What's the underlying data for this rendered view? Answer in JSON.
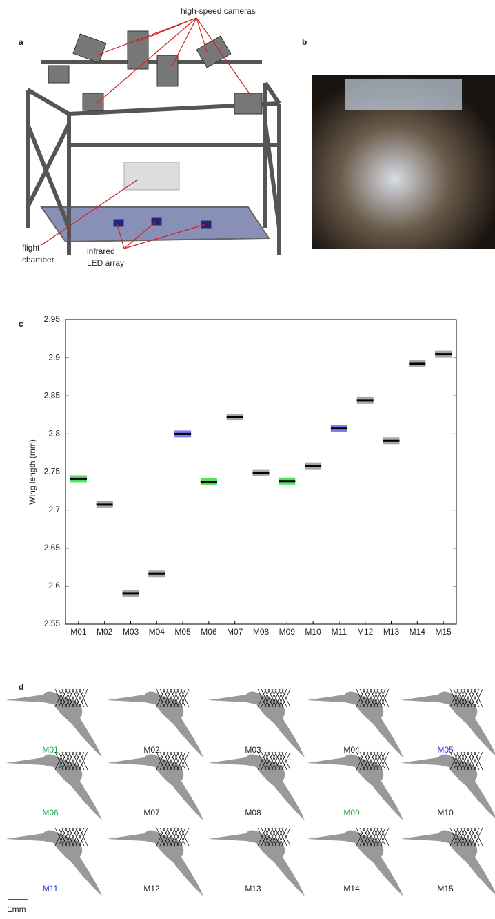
{
  "panel_labels": [
    "a",
    "b",
    "c",
    "d"
  ],
  "panel_a": {
    "cameras_label": "high-speed cameras",
    "chamber_label": [
      "flight",
      "chamber"
    ],
    "led_label": [
      "infrared",
      "LED array"
    ]
  },
  "chart_data": {
    "type": "range-marker",
    "ylabel": "Wing length (mm)",
    "categories": [
      "M01",
      "M02",
      "M03",
      "M04",
      "M05",
      "M06",
      "M07",
      "M08",
      "M09",
      "M10",
      "M11",
      "M12",
      "M13",
      "M14",
      "M15"
    ],
    "values": [
      2.741,
      2.707,
      2.59,
      2.616,
      2.8,
      2.737,
      2.822,
      2.749,
      2.738,
      2.758,
      2.807,
      2.844,
      2.791,
      2.892,
      2.905
    ],
    "colors": [
      "#33dd44",
      "#999999",
      "#999999",
      "#999999",
      "#6666ee",
      "#33dd44",
      "#999999",
      "#999999",
      "#33dd44",
      "#999999",
      "#6666ee",
      "#999999",
      "#999999",
      "#999999",
      "#999999"
    ],
    "ylim": [
      2.55,
      2.95
    ],
    "yticks": [
      2.55,
      2.6,
      2.65,
      2.7,
      2.75,
      2.8,
      2.85,
      2.9,
      2.95
    ]
  },
  "panel_d": {
    "items": [
      {
        "label": "M01",
        "color": "#2aa84a"
      },
      {
        "label": "M02",
        "color": "#222222"
      },
      {
        "label": "M03",
        "color": "#222222"
      },
      {
        "label": "M04",
        "color": "#222222"
      },
      {
        "label": "M05",
        "color": "#2233cc"
      },
      {
        "label": "M06",
        "color": "#2aa84a"
      },
      {
        "label": "M07",
        "color": "#222222"
      },
      {
        "label": "M08",
        "color": "#222222"
      },
      {
        "label": "M09",
        "color": "#2aa84a"
      },
      {
        "label": "M10",
        "color": "#222222"
      },
      {
        "label": "M11",
        "color": "#2233cc"
      },
      {
        "label": "M12",
        "color": "#222222"
      },
      {
        "label": "M13",
        "color": "#222222"
      },
      {
        "label": "M14",
        "color": "#222222"
      },
      {
        "label": "M15",
        "color": "#222222"
      }
    ],
    "scale_label": "1mm"
  }
}
